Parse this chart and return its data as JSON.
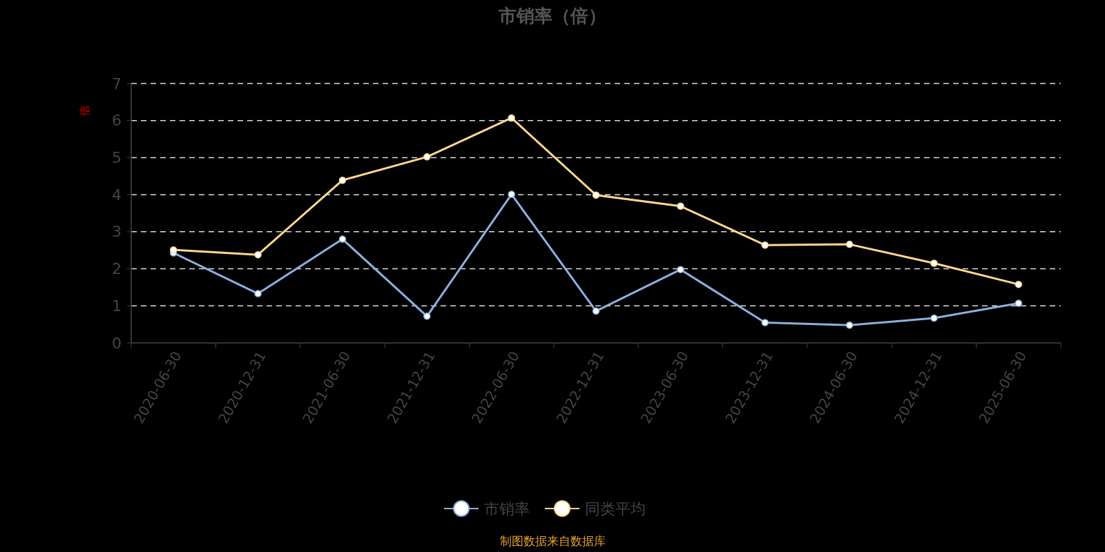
{
  "chart_data": {
    "type": "line",
    "title": "市销率（倍）",
    "ylabel": "倍",
    "categories": [
      "2020-06-30",
      "2020-12-31",
      "2021-06-30",
      "2021-12-31",
      "2022-06-30",
      "2022-12-31",
      "2023-06-30",
      "2023-12-31",
      "2024-06-30",
      "2024-12-31",
      "2025-06-30"
    ],
    "series": [
      {
        "name": "市销率",
        "color": "#8eb0e0",
        "values": [
          2.43,
          1.33,
          2.8,
          0.72,
          4.01,
          0.86,
          1.98,
          0.55,
          0.48,
          0.67,
          1.07
        ]
      },
      {
        "name": "同类平均",
        "color": "#ffd98f",
        "values": [
          2.51,
          2.38,
          4.39,
          5.02,
          6.07,
          3.99,
          3.69,
          2.64,
          2.66,
          2.15,
          1.58
        ]
      }
    ],
    "ylim": [
      0,
      7
    ],
    "yticks": [
      0,
      1,
      2,
      3,
      4,
      5,
      6,
      7
    ],
    "grid": "y",
    "legend": "bottom",
    "marker": "circle",
    "line_style": "solid",
    "annotations": [
      "制图数据来自数据库"
    ]
  }
}
